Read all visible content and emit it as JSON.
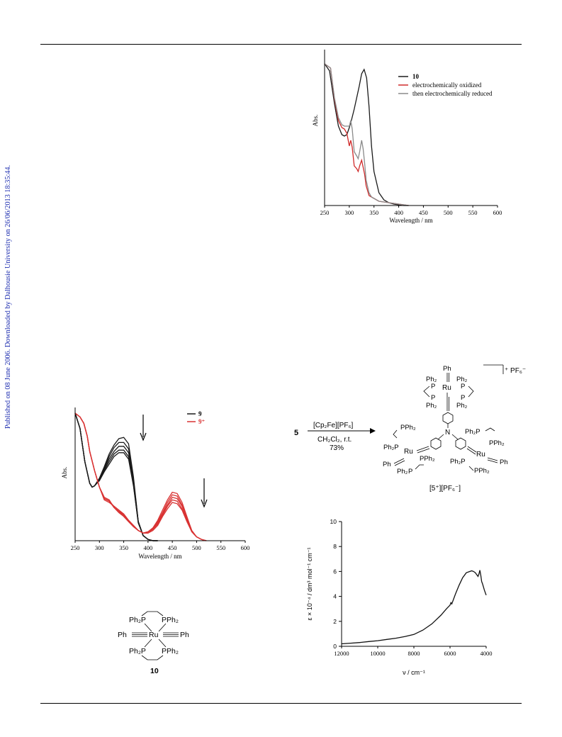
{
  "sidebar_text": "Published on 08 June 2006. Downloaded by Dalhousie University on 26/06/2013 18:35:44.",
  "chart_data": [
    {
      "type": "line",
      "xlabel": "Wavelength / nm",
      "ylabel": "Abs.",
      "xlim": [
        250,
        600
      ],
      "xticks": [
        "250",
        "300",
        "350",
        "400",
        "450",
        "500",
        "550",
        "600"
      ],
      "legend_position": "top-right",
      "series": [
        {
          "name": "10",
          "color": "#1a1a1a",
          "x": [
            250,
            260,
            270,
            278,
            285,
            290,
            295,
            300,
            305,
            310,
            315,
            320,
            325,
            330,
            335,
            340,
            345,
            350,
            360,
            370,
            380,
            390,
            400,
            410,
            420
          ],
          "y": [
            1.0,
            0.95,
            0.72,
            0.56,
            0.5,
            0.49,
            0.5,
            0.55,
            0.61,
            0.68,
            0.76,
            0.84,
            0.93,
            0.96,
            0.9,
            0.7,
            0.42,
            0.24,
            0.09,
            0.04,
            0.02,
            0.01,
            0.005,
            0.0,
            0.0
          ]
        },
        {
          "name": "electrochemically oxidized",
          "color": "#d02a2a",
          "x": [
            250,
            262,
            270,
            278,
            285,
            290,
            295,
            300,
            303,
            306,
            310,
            315,
            318,
            321,
            325,
            328,
            331,
            334,
            340,
            345,
            350,
            360,
            380,
            400,
            420
          ],
          "y": [
            1.0,
            0.97,
            0.75,
            0.6,
            0.55,
            0.54,
            0.51,
            0.42,
            0.46,
            0.41,
            0.28,
            0.26,
            0.24,
            0.28,
            0.32,
            0.27,
            0.22,
            0.14,
            0.07,
            0.06,
            0.05,
            0.03,
            0.02,
            0.01,
            0.0
          ]
        },
        {
          "name": "then electrochemically reduced",
          "color": "#8a8a8a",
          "x": [
            250,
            262,
            270,
            278,
            285,
            290,
            295,
            300,
            303,
            306,
            310,
            315,
            318,
            321,
            325,
            328,
            331,
            334,
            340,
            345,
            350,
            360,
            380,
            400,
            420
          ],
          "y": [
            1.0,
            0.97,
            0.76,
            0.62,
            0.57,
            0.56,
            0.56,
            0.56,
            0.6,
            0.54,
            0.38,
            0.35,
            0.33,
            0.38,
            0.46,
            0.4,
            0.3,
            0.18,
            0.09,
            0.06,
            0.05,
            0.03,
            0.02,
            0.01,
            0.0
          ]
        }
      ]
    },
    {
      "type": "line",
      "xlabel": "Wavelength / nm",
      "ylabel": "Abs.",
      "xlim": [
        250,
        600
      ],
      "xticks": [
        "250",
        "300",
        "350",
        "400",
        "450",
        "500",
        "550",
        "600"
      ],
      "legend_position": "top-right",
      "series": [
        {
          "name": "9",
          "color": "#1a1a1a",
          "x": [
            250,
            260,
            270,
            280,
            285,
            290,
            300,
            310,
            320,
            330,
            340,
            350,
            360,
            370,
            380,
            390,
            400,
            410,
            420
          ],
          "y": [
            [
              1.0,
              0.88,
              0.62,
              0.45,
              0.42,
              0.43,
              0.49,
              0.58,
              0.68,
              0.75,
              0.8,
              0.81,
              0.76,
              0.5,
              0.15,
              0.04,
              0.01,
              0.0,
              0.0
            ],
            [
              1.0,
              0.88,
              0.62,
              0.45,
              0.42,
              0.43,
              0.49,
              0.57,
              0.66,
              0.73,
              0.77,
              0.77,
              0.72,
              0.48,
              0.15,
              0.04,
              0.01,
              0.0,
              0.0
            ],
            [
              1.0,
              0.88,
              0.62,
              0.45,
              0.42,
              0.43,
              0.48,
              0.56,
              0.64,
              0.7,
              0.74,
              0.74,
              0.69,
              0.46,
              0.15,
              0.04,
              0.01,
              0.0,
              0.0
            ],
            [
              1.0,
              0.88,
              0.62,
              0.45,
              0.42,
              0.43,
              0.48,
              0.55,
              0.62,
              0.68,
              0.71,
              0.71,
              0.66,
              0.44,
              0.14,
              0.04,
              0.01,
              0.0,
              0.0
            ],
            [
              1.0,
              0.88,
              0.62,
              0.45,
              0.42,
              0.43,
              0.47,
              0.54,
              0.6,
              0.66,
              0.69,
              0.69,
              0.64,
              0.43,
              0.14,
              0.04,
              0.01,
              0.0,
              0.0
            ]
          ]
        },
        {
          "name": "9⁺",
          "color": "#d93333",
          "x": [
            250,
            260,
            268,
            275,
            280,
            290,
            300,
            310,
            320,
            330,
            340,
            350,
            360,
            370,
            380,
            390,
            400,
            410,
            420,
            430,
            440,
            450,
            460,
            470,
            480,
            490,
            500,
            510,
            520
          ],
          "y": [
            [
              1.0,
              0.97,
              0.92,
              0.82,
              0.7,
              0.55,
              0.42,
              0.32,
              0.3,
              0.27,
              0.24,
              0.21,
              0.16,
              0.12,
              0.08,
              0.06,
              0.07,
              0.1,
              0.16,
              0.24,
              0.32,
              0.38,
              0.37,
              0.3,
              0.19,
              0.08,
              0.03,
              0.01,
              0.0
            ],
            [
              1.0,
              0.97,
              0.92,
              0.82,
              0.7,
              0.55,
              0.42,
              0.33,
              0.31,
              0.27,
              0.24,
              0.2,
              0.16,
              0.12,
              0.08,
              0.06,
              0.07,
              0.1,
              0.15,
              0.22,
              0.3,
              0.36,
              0.35,
              0.28,
              0.18,
              0.08,
              0.03,
              0.01,
              0.0
            ],
            [
              1.0,
              0.97,
              0.92,
              0.82,
              0.7,
              0.55,
              0.42,
              0.33,
              0.31,
              0.26,
              0.23,
              0.2,
              0.15,
              0.11,
              0.08,
              0.06,
              0.07,
              0.09,
              0.14,
              0.21,
              0.28,
              0.34,
              0.33,
              0.27,
              0.17,
              0.07,
              0.03,
              0.01,
              0.0
            ],
            [
              1.0,
              0.97,
              0.92,
              0.82,
              0.7,
              0.55,
              0.42,
              0.34,
              0.32,
              0.26,
              0.23,
              0.19,
              0.15,
              0.11,
              0.08,
              0.06,
              0.06,
              0.09,
              0.13,
              0.2,
              0.27,
              0.32,
              0.31,
              0.25,
              0.16,
              0.07,
              0.03,
              0.01,
              0.0
            ],
            [
              1.0,
              0.97,
              0.92,
              0.82,
              0.7,
              0.55,
              0.42,
              0.34,
              0.32,
              0.26,
              0.22,
              0.19,
              0.15,
              0.11,
              0.08,
              0.06,
              0.06,
              0.08,
              0.12,
              0.19,
              0.25,
              0.3,
              0.29,
              0.24,
              0.15,
              0.07,
              0.03,
              0.01,
              0.0
            ]
          ]
        }
      ]
    },
    {
      "type": "line",
      "xlabel": "ν / cm⁻¹",
      "ylabel": "ε × 10⁻⁴ / dm³ mol⁻¹ cm⁻¹",
      "xlim": [
        12000,
        4000
      ],
      "ylim": [
        0,
        10
      ],
      "xticks": [
        "12000",
        "10000",
        "8000",
        "6000",
        "4000"
      ],
      "yticks": [
        "0",
        "2",
        "4",
        "6",
        "8",
        "10"
      ],
      "series": [
        {
          "name": "",
          "color": "#111111",
          "x": [
            12000,
            11500,
            11000,
            10500,
            10000,
            9500,
            9000,
            8500,
            8000,
            7500,
            7000,
            6500,
            6200,
            6000,
            5950,
            5900,
            5700,
            5500,
            5300,
            5100,
            4900,
            4800,
            4700,
            4600,
            4500,
            4450,
            4400,
            4350,
            4300,
            4250,
            4200,
            4100,
            4000
          ],
          "y": [
            0.2,
            0.25,
            0.3,
            0.38,
            0.45,
            0.55,
            0.65,
            0.78,
            0.95,
            1.3,
            1.8,
            2.5,
            3.0,
            3.3,
            3.5,
            3.4,
            4.2,
            4.9,
            5.5,
            5.9,
            6.0,
            6.05,
            6.0,
            5.9,
            5.7,
            5.6,
            5.8,
            6.1,
            5.7,
            5.2,
            5.0,
            4.5,
            4.1
          ]
        }
      ]
    }
  ],
  "scheme_10": {
    "label": "10",
    "top": {
      "left": "Ph₂P",
      "right": "PPh₂"
    },
    "middle": {
      "left": "Ph",
      "center": "Ru",
      "right": "Ph"
    },
    "bottom": {
      "left": "Ph₂P",
      "right": "PPh₂"
    }
  },
  "reaction": {
    "reactant": "5",
    "reagent": "[Cp₂Fe][PF₆]",
    "conditions": "CH₂Cl₂, r.t.",
    "yield": "73%",
    "counter_ion": "⁺ PF₆⁻",
    "product_label": "[5⁺][PF₆⁻]",
    "labels": {
      "ph_top": "Ph",
      "ru_top": "Ru",
      "n": "N",
      "ru_left": "Ru",
      "ru_right": "Ru",
      "ph_left": "Ph",
      "ph_right": "Ph",
      "ph2": "Ph₂",
      "pph2": "PPh₂",
      "ph2p": "Ph₂P",
      "p": "P"
    }
  }
}
